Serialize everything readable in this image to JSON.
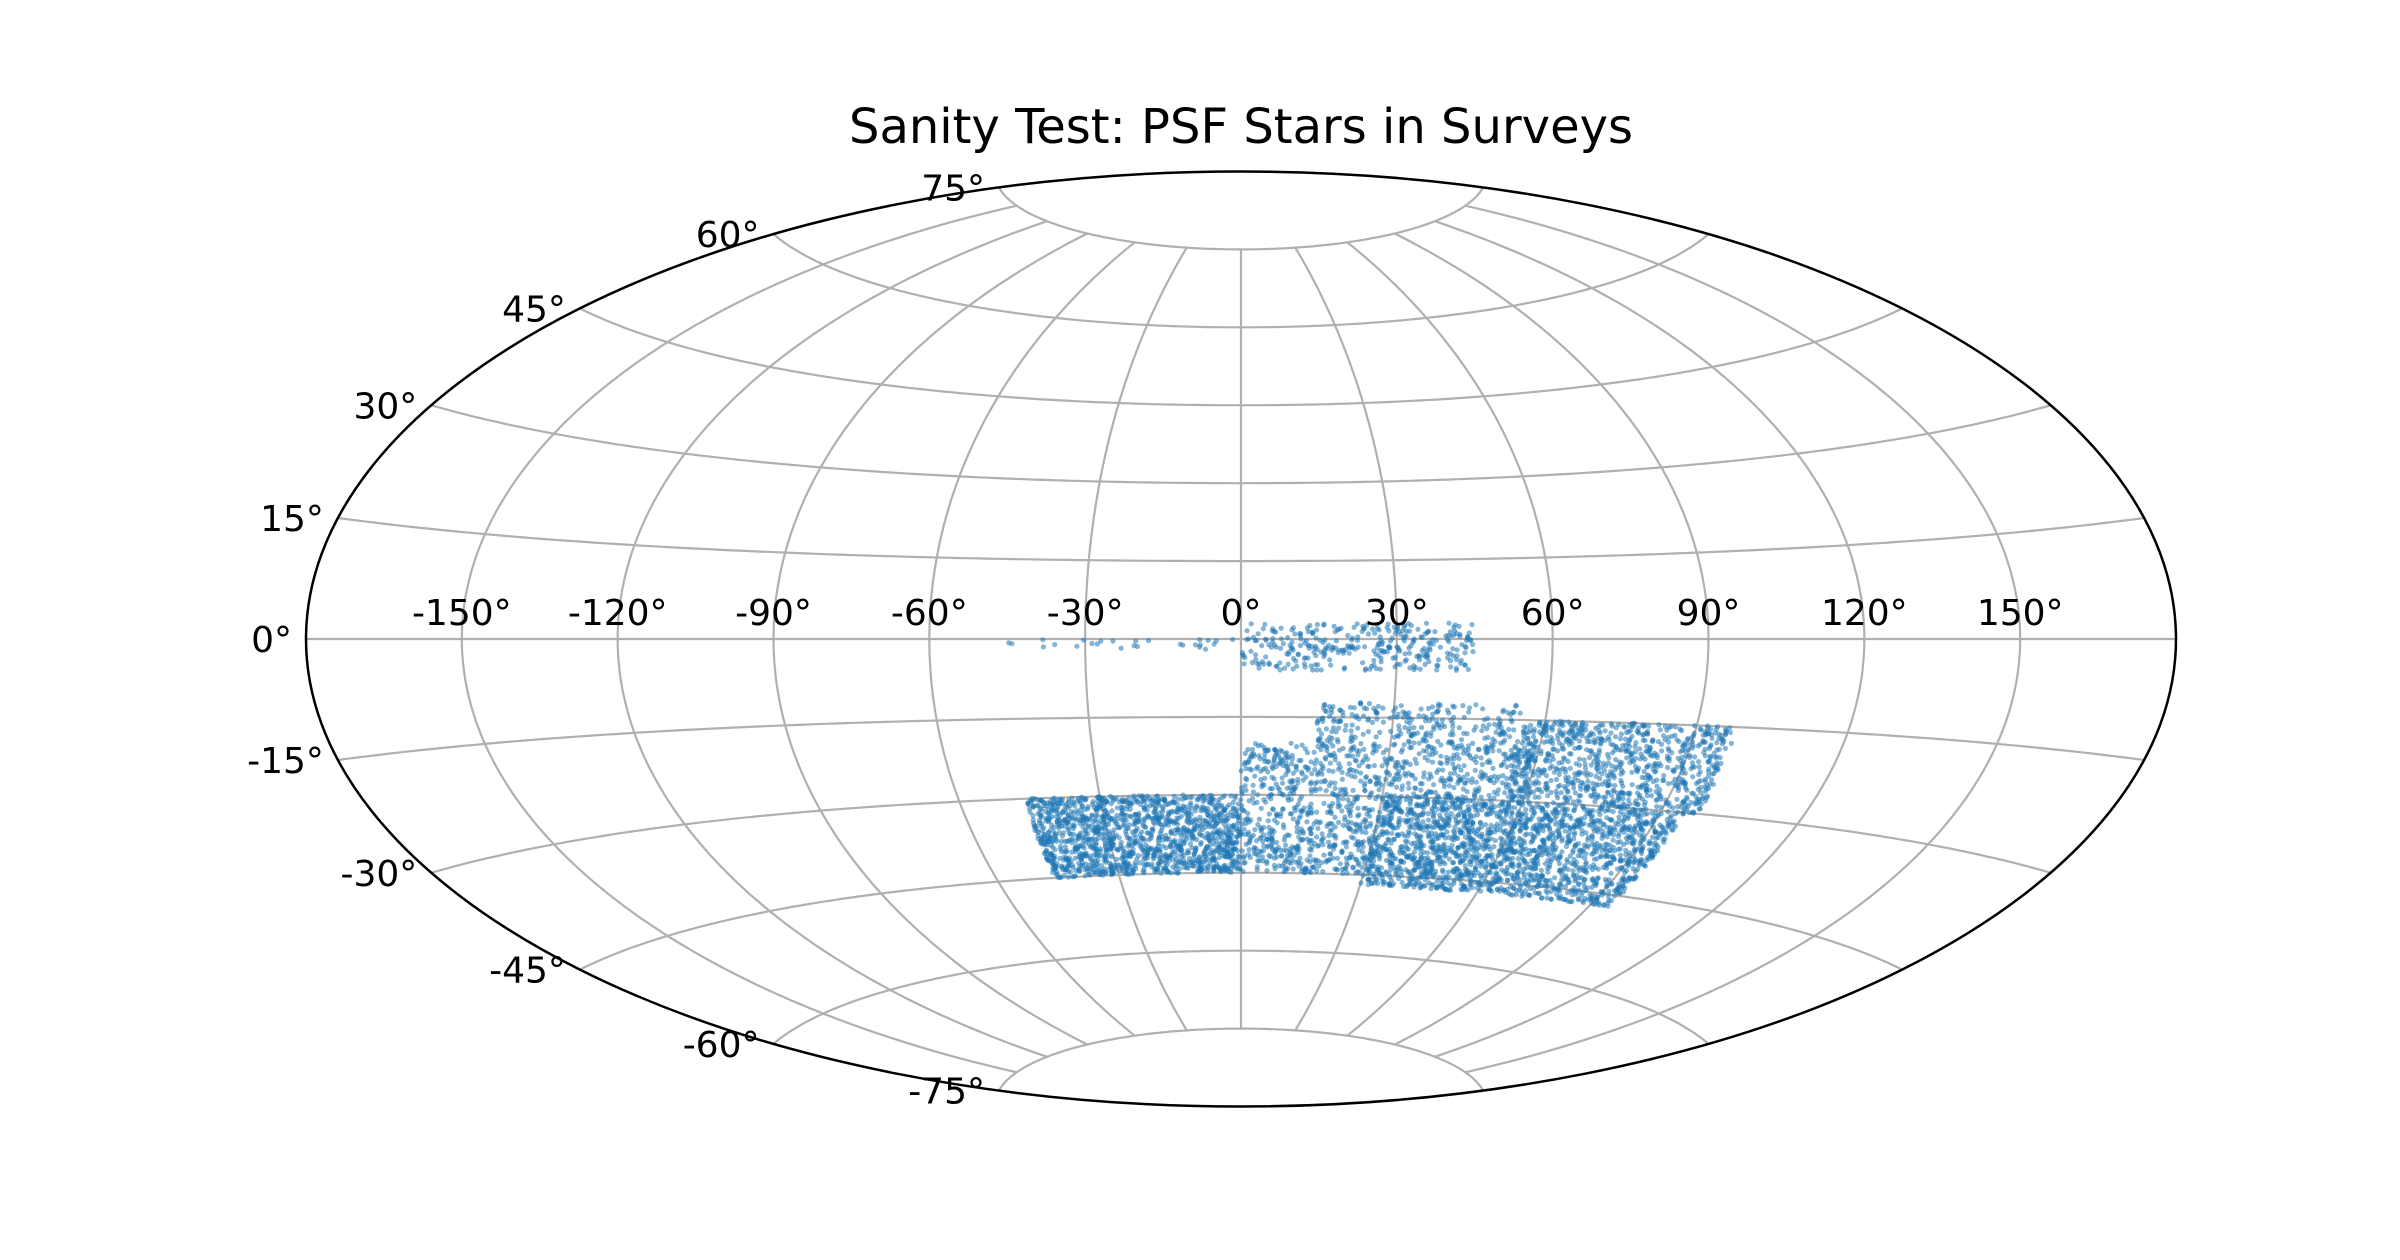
{
  "chart_data": {
    "type": "scatter",
    "projection": "aitoff",
    "title": "Sanity Test: PSF Stars in Surveys",
    "xlabel": "",
    "ylabel": "",
    "grid": true,
    "xlim": [
      -180,
      180
    ],
    "ylim": [
      -90,
      90
    ],
    "longitude_ticks": [
      -150,
      -120,
      -90,
      -60,
      -30,
      0,
      30,
      60,
      90,
      120,
      150
    ],
    "longitude_tick_labels": [
      "-150°",
      "-120°",
      "-90°",
      "-60°",
      "-30°",
      "0°",
      "30°",
      "60°",
      "90°",
      "120°",
      "150°"
    ],
    "latitude_ticks": [
      -75,
      -60,
      -45,
      -30,
      -15,
      0,
      15,
      30,
      45,
      60,
      75
    ],
    "latitude_tick_labels": [
      "-75°",
      "-60°",
      "-45°",
      "-30°",
      "-15°",
      "0°",
      "15°",
      "30°",
      "45°",
      "60°",
      "75°"
    ],
    "marker_color": "#1f77b4",
    "grid_color": "#b0b0b0",
    "series": [
      {
        "regions": [
          {
            "lon": [
              -46,
              45
            ],
            "lat": [
              -2,
              0
            ],
            "density": 0.35
          },
          {
            "lon": [
              0,
              45
            ],
            "lat": [
              -6,
              3
            ],
            "density": 0.8
          },
          {
            "lon": [
              15,
              55
            ],
            "lat": [
              -20,
              -12
            ],
            "density": 0.8
          },
          {
            "lon": [
              0,
              60
            ],
            "lat": [
              -30,
              -20
            ],
            "density": 1.0
          },
          {
            "lon": [
              55,
              98
            ],
            "lat": [
              -30,
              -15
            ],
            "density": 1.4
          },
          {
            "lon": [
              -46,
              0
            ],
            "lat": [
              -45,
              -30
            ],
            "density": 2.2
          },
          {
            "lon": [
              0,
              30
            ],
            "lat": [
              -45,
              -30
            ],
            "density": 1.0
          },
          {
            "lon": [
              30,
              95
            ],
            "lat": [
              -47,
              -30
            ],
            "density": 1.8
          }
        ]
      }
    ]
  }
}
